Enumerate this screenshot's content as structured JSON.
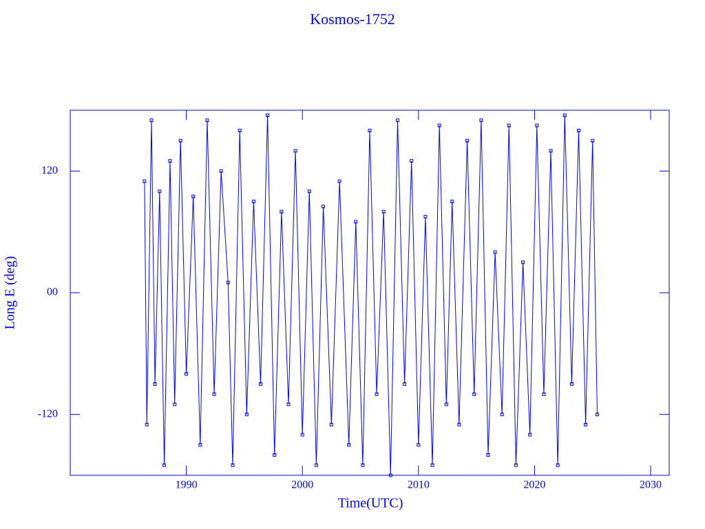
{
  "chart_data": {
    "type": "line",
    "title": "Kosmos-1752",
    "xlabel": "Time(UTC)",
    "ylabel": "Long E (deg)",
    "color": "#0000ff",
    "xlim": [
      1980,
      2031.6
    ],
    "ylim": [
      -180,
      180
    ],
    "xticks": [
      1990,
      2000,
      2010,
      2020,
      2030
    ],
    "yticks": [
      -120,
      {
        "value": 0,
        "label": "00"
      },
      120
    ],
    "x": [
      1986.4,
      1986.6,
      1987.0,
      1987.3,
      1987.7,
      1988.1,
      1988.6,
      1989.0,
      1989.5,
      1990.0,
      1990.6,
      1991.2,
      1991.8,
      1992.4,
      1993.0,
      1993.6,
      1994.0,
      1994.6,
      1995.2,
      1995.8,
      1996.4,
      1997.0,
      1997.6,
      1998.2,
      1998.8,
      1999.4,
      2000.0,
      2000.6,
      2001.2,
      2001.8,
      2002.5,
      2003.2,
      2004.0,
      2004.6,
      2005.2,
      2005.8,
      2006.4,
      2007.0,
      2007.6,
      2008.2,
      2008.8,
      2009.4,
      2010.0,
      2010.6,
      2011.2,
      2011.8,
      2012.4,
      2012.9,
      2013.5,
      2014.2,
      2014.8,
      2015.4,
      2016.0,
      2016.6,
      2017.2,
      2017.8,
      2018.4,
      2019.0,
      2019.6,
      2020.2,
      2020.8,
      2021.4,
      2022.0,
      2022.6,
      2023.2,
      2023.8,
      2024.4,
      2025.0,
      2025.4
    ],
    "values": [
      110,
      -130,
      170,
      -90,
      100,
      -170,
      130,
      -110,
      150,
      -80,
      95,
      -150,
      170,
      -100,
      120,
      10,
      -170,
      160,
      -120,
      90,
      -90,
      175,
      -160,
      80,
      -110,
      140,
      -140,
      100,
      -170,
      85,
      -130,
      110,
      -150,
      70,
      -170,
      160,
      -100,
      80,
      -180,
      170,
      -90,
      130,
      -150,
      75,
      -170,
      165,
      -110,
      90,
      -130,
      150,
      -100,
      170,
      -160,
      40,
      -120,
      165,
      -170,
      30,
      -140,
      165,
      -100,
      140,
      -170,
      175,
      -90,
      160,
      -130,
      150,
      -120
    ]
  }
}
